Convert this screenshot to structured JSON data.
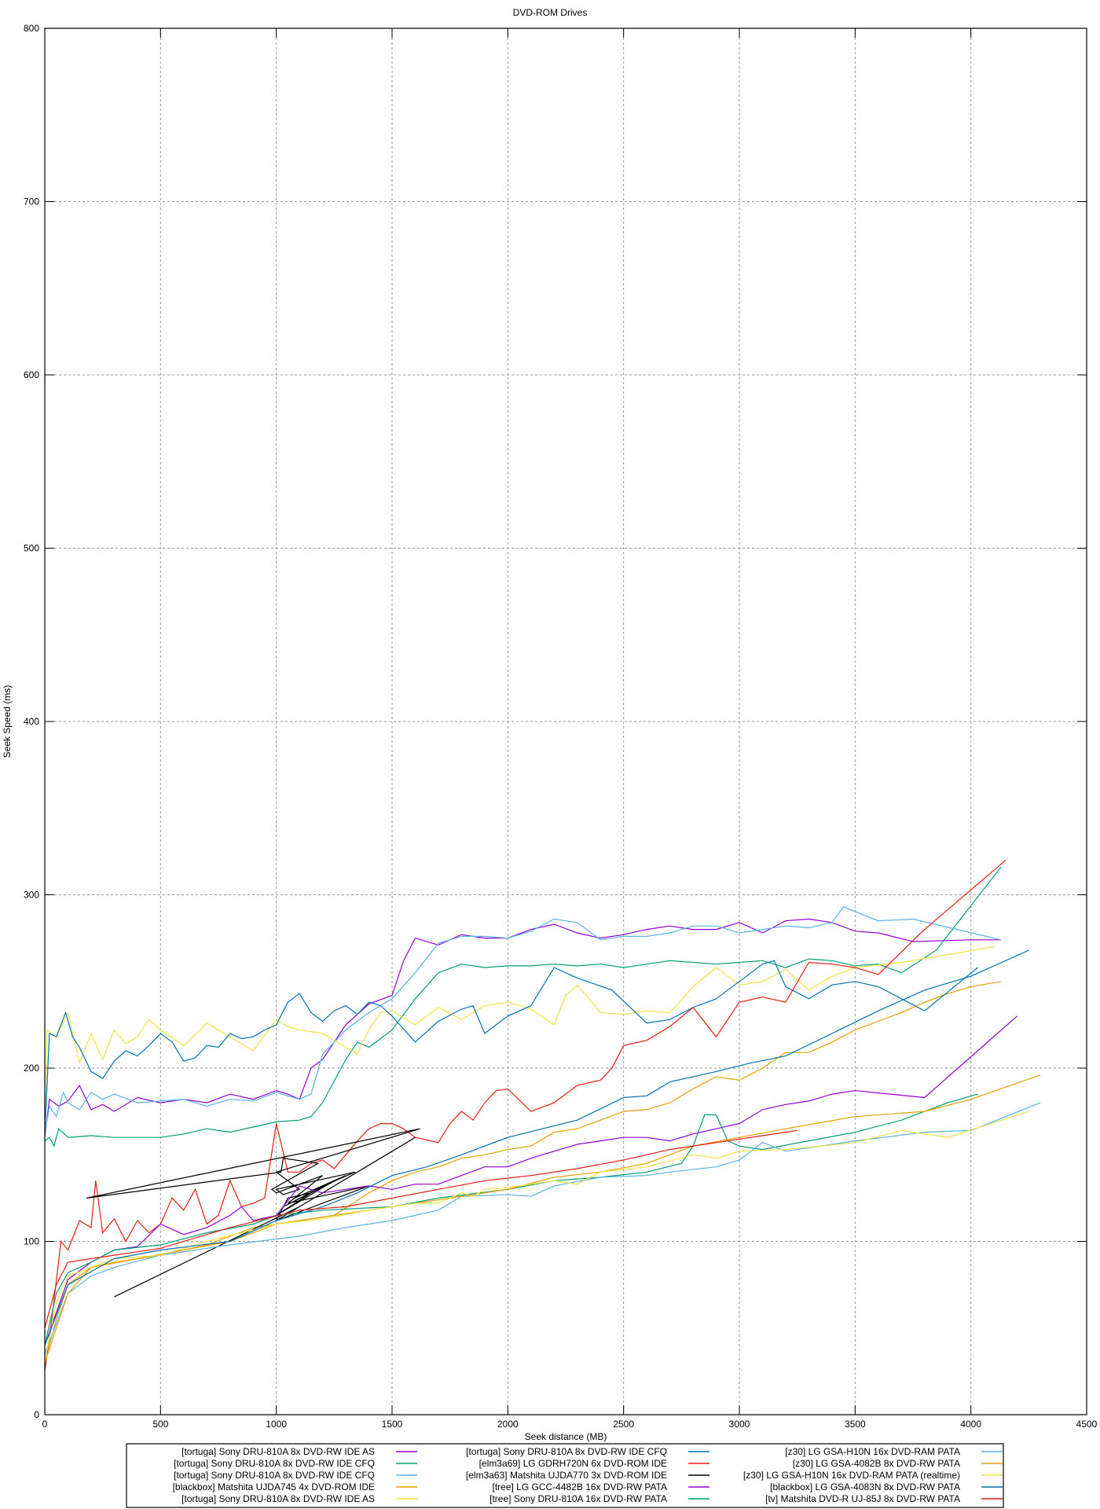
{
  "chart_data": {
    "type": "line",
    "title": "DVD-ROM Drives",
    "xlabel": "Seek distance (MB)",
    "ylabel": "Seek Speed (ms)",
    "xlim": [
      0,
      4500
    ],
    "ylim": [
      0,
      800
    ],
    "xticks": [
      0,
      500,
      1000,
      1500,
      2000,
      2500,
      3000,
      3500,
      4000,
      4500
    ],
    "yticks": [
      0,
      100,
      200,
      300,
      400,
      500,
      600,
      700,
      800
    ],
    "grid": true,
    "legend_position": "bottom",
    "series": [
      {
        "name": "[tortuga] Sony DRU-810A 8x DVD-RW IDE AS",
        "color": "#9400d3",
        "x": [
          0,
          20,
          60,
          100,
          150,
          200,
          250,
          300,
          400,
          500,
          600,
          700,
          800,
          900,
          1000,
          1050,
          1100,
          1150,
          1200,
          1300,
          1400,
          1500,
          1550,
          1600,
          1700,
          1800,
          1900,
          2000,
          2100,
          2200,
          2300,
          2400,
          2500,
          2600,
          2700,
          2800,
          2900,
          3000,
          3100,
          3200,
          3300,
          3400,
          3500,
          3600,
          3750,
          4000,
          4130
        ],
        "y": [
          160,
          182,
          178,
          181,
          190,
          176,
          179,
          175,
          183,
          180,
          182,
          180,
          185,
          182,
          187,
          185,
          182,
          200,
          205,
          225,
          237,
          242,
          262,
          275,
          271,
          277,
          275,
          275,
          280,
          283,
          278,
          275,
          277,
          280,
          282,
          280,
          280,
          284,
          278,
          285,
          286,
          284,
          279,
          278,
          273,
          274,
          274
        ]
      },
      {
        "name": "[tortuga] Sony DRU-810A 8x DVD-RW IDE CFQ",
        "color": "#009e73",
        "x": [
          0,
          20,
          40,
          60,
          100,
          200,
          300,
          400,
          500,
          600,
          700,
          800,
          900,
          1000,
          1100,
          1150,
          1200,
          1300,
          1350,
          1400,
          1500,
          1600,
          1700,
          1800,
          1900,
          2000,
          2100,
          2200,
          2300,
          2400,
          2500,
          2600,
          2700,
          2800,
          2900,
          3000,
          3100,
          3200,
          3300,
          3400,
          3500,
          3600,
          3700,
          3850,
          4130
        ],
        "y": [
          158,
          160,
          155,
          165,
          160,
          161,
          160,
          160,
          160,
          162,
          165,
          163,
          166,
          169,
          170,
          172,
          180,
          205,
          215,
          212,
          222,
          240,
          255,
          260,
          258,
          259,
          259,
          260,
          259,
          260,
          258,
          260,
          262,
          261,
          260,
          261,
          262,
          258,
          263,
          262,
          259,
          260,
          255,
          268,
          316
        ]
      },
      {
        "name": "[tortuga] Sony DRU-810A 8x DVD-RW IDE CFQ",
        "color": "#56b4e9",
        "x": [
          0,
          20,
          50,
          80,
          100,
          150,
          200,
          250,
          300,
          400,
          500,
          600,
          700,
          800,
          900,
          1000,
          1100,
          1150,
          1200,
          1300,
          1400,
          1500,
          1600,
          1700,
          1800,
          1900,
          2000,
          2100,
          2200,
          2300,
          2400,
          2500,
          2600,
          2700,
          2800,
          2900,
          3000,
          3100,
          3200,
          3300,
          3400,
          3450,
          3600,
          3750,
          4130
        ],
        "y": [
          162,
          178,
          172,
          186,
          180,
          176,
          186,
          182,
          185,
          180,
          181,
          182,
          178,
          182,
          181,
          186,
          182,
          185,
          208,
          222,
          232,
          240,
          255,
          272,
          276,
          276,
          275,
          279,
          286,
          284,
          274,
          276,
          276,
          278,
          282,
          282,
          278,
          280,
          282,
          281,
          284,
          293,
          285,
          286,
          274
        ]
      },
      {
        "name": "[blackbox] Matshita UJDA745 4x DVD-ROM IDE",
        "color": "#e69f00",
        "x": [
          0,
          50,
          100,
          200,
          300,
          500,
          700,
          900,
          1100,
          1250,
          1400,
          1500,
          1600,
          1700,
          1800,
          1900,
          2000,
          2100,
          2200,
          2300,
          2400,
          2500,
          2600,
          2700,
          2800,
          2900,
          3000,
          3100,
          3200,
          3300,
          3400,
          3500,
          3600,
          3700,
          3800,
          3900,
          4000,
          4130
        ],
        "y": [
          30,
          55,
          75,
          85,
          88,
          92,
          98,
          108,
          112,
          115,
          128,
          135,
          140,
          143,
          148,
          150,
          153,
          155,
          163,
          165,
          170,
          175,
          176,
          180,
          188,
          195,
          193,
          200,
          209,
          209,
          215,
          222,
          227,
          232,
          238,
          243,
          247,
          250
        ]
      },
      {
        "name": "[tortuga] Sony DRU-810A 8x DVD-RW IDE AS",
        "color": "#f0e442",
        "x": [
          0,
          10,
          50,
          100,
          150,
          200,
          250,
          300,
          350,
          400,
          450,
          500,
          600,
          700,
          800,
          900,
          1000,
          1050,
          1100,
          1200,
          1300,
          1350,
          1400,
          1450,
          1500,
          1600,
          1700,
          1800,
          1900,
          2000,
          2100,
          2200,
          2250,
          2300,
          2400,
          2500,
          2600,
          2700,
          2800,
          2900,
          3000,
          3100,
          3200,
          3300,
          3400,
          3500,
          3700,
          4100
        ],
        "y": [
          160,
          222,
          218,
          232,
          203,
          220,
          205,
          222,
          214,
          218,
          228,
          222,
          213,
          226,
          218,
          210,
          228,
          224,
          222,
          220,
          212,
          208,
          222,
          232,
          233,
          225,
          235,
          228,
          236,
          238,
          234,
          225,
          242,
          248,
          232,
          231,
          233,
          232,
          247,
          258,
          248,
          250,
          257,
          245,
          253,
          258,
          261,
          270
        ]
      },
      {
        "name": "[tortuga] Sony DRU-810A 8x DVD-RW IDE CFQ",
        "color": "#0072b2",
        "x": [
          0,
          20,
          50,
          90,
          120,
          150,
          200,
          250,
          300,
          350,
          400,
          450,
          500,
          550,
          600,
          650,
          700,
          750,
          800,
          850,
          900,
          950,
          1000,
          1050,
          1100,
          1150,
          1200,
          1250,
          1300,
          1350,
          1400,
          1450,
          1500,
          1600,
          1700,
          1800,
          1850,
          1900,
          2000,
          2100,
          2200,
          2300,
          2450,
          2600,
          2700,
          2800,
          2900,
          3000,
          3100,
          3150,
          3200,
          3300,
          3400,
          3500,
          3600,
          3700,
          3800,
          4030
        ],
        "y": [
          162,
          220,
          218,
          232,
          218,
          212,
          198,
          194,
          204,
          210,
          207,
          213,
          220,
          215,
          204,
          206,
          213,
          212,
          220,
          217,
          218,
          222,
          225,
          238,
          243,
          232,
          227,
          233,
          236,
          231,
          238,
          236,
          230,
          215,
          227,
          234,
          236,
          220,
          230,
          236,
          258,
          252,
          245,
          226,
          228,
          235,
          240,
          250,
          260,
          262,
          247,
          240,
          248,
          250,
          247,
          240,
          233,
          258
        ]
      },
      {
        "name": "[elm3a69] LG GDRH720N 6x DVD-ROM IDE",
        "color": "#e51e10",
        "x": [
          0,
          30,
          70,
          100,
          150,
          200,
          220,
          250,
          300,
          350,
          400,
          450,
          500,
          550,
          600,
          650,
          700,
          750,
          800,
          850,
          900,
          950,
          1000,
          1050,
          1100,
          1150,
          1200,
          1250,
          1300,
          1350,
          1400,
          1450,
          1500,
          1550,
          1600,
          1700,
          1750,
          1800,
          1850,
          1900,
          1950,
          2000,
          2100,
          2200,
          2300,
          2400,
          2450,
          2500,
          2600,
          2700,
          2800,
          2900,
          3000,
          3100,
          3200,
          3300,
          3400,
          3500,
          3600,
          3800,
          4150
        ],
        "y": [
          25,
          55,
          100,
          95,
          112,
          108,
          135,
          105,
          113,
          100,
          112,
          105,
          110,
          125,
          118,
          130,
          110,
          115,
          135,
          120,
          122,
          125,
          168,
          140,
          140,
          145,
          147,
          142,
          150,
          158,
          165,
          168,
          168,
          165,
          160,
          157,
          168,
          175,
          170,
          180,
          187,
          188,
          175,
          180,
          190,
          193,
          200,
          213,
          216,
          224,
          235,
          218,
          238,
          241,
          238,
          261,
          260,
          258,
          254,
          280,
          320
        ]
      },
      {
        "name": "[elm3a63] Matshita UJDA770 3x DVD-ROM IDE",
        "color": "#000000",
        "x": [
          300,
          1100,
          1000,
          1050,
          1150,
          1000,
          1250,
          1030,
          1300,
          1080,
          1340,
          1000,
          1030,
          1100,
          1000,
          1620,
          180,
          1020,
          1030,
          1180,
          980,
          1000,
          1200,
          1050,
          1400,
          1000,
          1600
        ],
        "y": [
          68,
          120,
          112,
          125,
          128,
          115,
          135,
          120,
          138,
          125,
          140,
          130,
          127,
          130,
          140,
          165,
          125,
          140,
          148,
          145,
          130,
          128,
          138,
          122,
          132,
          112,
          160
        ]
      },
      {
        "name": "[tree] LG GCC-4482B 16x DVD-RW PATA",
        "color": "#9400d3",
        "x": [
          0,
          100,
          200,
          300,
          400,
          500,
          600,
          700,
          800,
          850,
          900,
          1000,
          1100,
          1200,
          1300,
          1400,
          1500,
          1600,
          1700,
          1800,
          1900,
          2000,
          2100,
          2200,
          2300,
          2400,
          2500,
          2600,
          2700,
          2800,
          2900,
          3000,
          3100,
          3200,
          3300,
          3400,
          3500,
          3650,
          3800,
          4200
        ],
        "y": [
          40,
          78,
          88,
          95,
          97,
          110,
          104,
          108,
          115,
          120,
          112,
          115,
          132,
          128,
          130,
          132,
          130,
          133,
          133,
          138,
          143,
          143,
          148,
          152,
          156,
          158,
          160,
          160,
          158,
          162,
          165,
          168,
          176,
          179,
          181,
          185,
          187,
          185,
          183,
          230
        ]
      },
      {
        "name": "[tree] Sony DRU-810A 16x DVD-RW PATA",
        "color": "#009e73",
        "x": [
          0,
          50,
          100,
          200,
          300,
          500,
          700,
          900,
          1000,
          1200,
          1500,
          1700,
          2000,
          2200,
          2400,
          2600,
          2750,
          2800,
          2850,
          2900,
          2950,
          3000,
          3100,
          3300,
          3500,
          3700,
          3900,
          4030
        ],
        "y": [
          40,
          70,
          82,
          88,
          95,
          98,
          105,
          110,
          115,
          118,
          120,
          125,
          130,
          135,
          137,
          140,
          145,
          155,
          173,
          173,
          158,
          155,
          153,
          158,
          163,
          170,
          180,
          185
        ]
      },
      {
        "name": "[z30] LG GSA-H10N 16x DVD-RAM PATA",
        "color": "#56b4e9",
        "x": [
          0,
          100,
          200,
          300,
          500,
          800,
          1100,
          1300,
          1500,
          1700,
          1800,
          2000,
          2100,
          2200,
          2400,
          2600,
          2700,
          2900,
          3000,
          3100,
          3200,
          3500,
          3800,
          4000,
          4300
        ],
        "y": [
          35,
          70,
          80,
          85,
          92,
          98,
          103,
          108,
          112,
          118,
          126,
          127,
          126,
          132,
          137,
          138,
          140,
          143,
          147,
          157,
          152,
          158,
          163,
          164,
          180
        ]
      },
      {
        "name": "[z30] LG GSA-4082B 8x DVD-RW PATA",
        "color": "#e69f00",
        "x": [
          0,
          100,
          200,
          400,
          600,
          800,
          1000,
          1250,
          1500,
          1750,
          2000,
          2200,
          2400,
          2600,
          2800,
          3000,
          3200,
          3500,
          3800,
          4000,
          4300
        ],
        "y": [
          30,
          70,
          85,
          90,
          95,
          100,
          110,
          115,
          120,
          125,
          130,
          137,
          140,
          145,
          155,
          160,
          165,
          172,
          175,
          182,
          196
        ]
      },
      {
        "name": "[z30] LG GSA-H10N 16x DVD-RAM PATA (realtime)",
        "color": "#f0e442",
        "x": [
          0,
          50,
          100,
          200,
          300,
          500,
          700,
          850,
          1000,
          1200,
          1400,
          1500,
          1600,
          1700,
          1800,
          1850,
          1900,
          2000,
          2200,
          2300,
          2400,
          2600,
          2800,
          2900,
          3000,
          3200,
          3500,
          3700,
          3900,
          4250
        ],
        "y": [
          30,
          65,
          80,
          85,
          90,
          92,
          100,
          105,
          110,
          113,
          118,
          120,
          122,
          122,
          128,
          126,
          130,
          131,
          135,
          133,
          140,
          143,
          150,
          148,
          152,
          153,
          157,
          164,
          160,
          175
        ]
      },
      {
        "name": "[blackbox] LG GSA-4083N 8x DVD-RW PATA",
        "color": "#0072b2",
        "x": [
          0,
          100,
          300,
          500,
          800,
          1000,
          1200,
          1350,
          1500,
          1650,
          1800,
          2000,
          2150,
          2300,
          2500,
          2600,
          2700,
          2900,
          3050,
          3200,
          3400,
          3600,
          3800,
          4000,
          4250
        ],
        "y": [
          40,
          75,
          90,
          95,
          100,
          112,
          120,
          128,
          138,
          143,
          150,
          160,
          165,
          170,
          183,
          184,
          192,
          198,
          203,
          207,
          220,
          233,
          245,
          253,
          268
        ]
      },
      {
        "name": "[tv] Matshita DVD-R UJ-85J 8x DVD-RW PATA",
        "color": "#e51e10",
        "x": [
          0,
          50,
          100,
          200,
          300,
          500,
          800,
          1100,
          1300,
          1500,
          1700,
          1900,
          2100,
          2300,
          2500,
          2700,
          2900,
          3100,
          3250
        ],
        "y": [
          50,
          75,
          88,
          90,
          92,
          96,
          108,
          118,
          120,
          125,
          130,
          135,
          138,
          142,
          147,
          153,
          157,
          161,
          164
        ]
      }
    ]
  }
}
